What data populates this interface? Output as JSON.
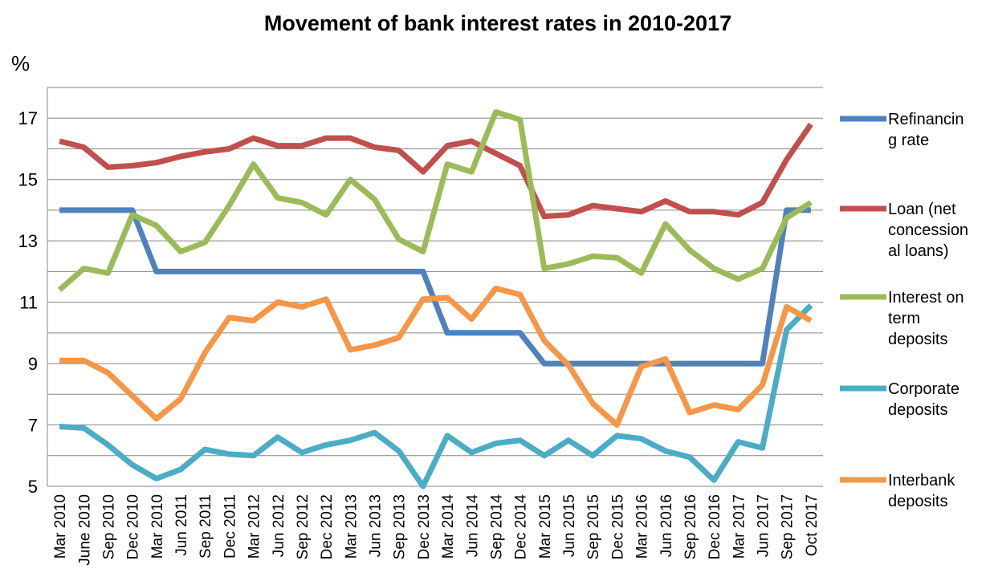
{
  "chart_data": {
    "type": "line",
    "title": "Movement of bank interest rates in 2010-2017",
    "ylabel": "%",
    "xlabel": "",
    "ylim": [
      5,
      18
    ],
    "yticks": [
      5,
      7,
      9,
      11,
      13,
      15,
      17
    ],
    "grid": true,
    "legend_position": "right",
    "categories": [
      "Mar 2010",
      "June 2010",
      "Sep 2010",
      "Dec 2010",
      "Mar 2010",
      "Jun 2011",
      "Sep 2011",
      "Dec 2011",
      "Mar 2012",
      "Jun 2012",
      "Sep 2012",
      "Dec 2012",
      "Mar 2013",
      "Jun 2013",
      "Sep 2013",
      "Dec 2013",
      "Mar 2014",
      "Jun 2014",
      "Sep 2014",
      "Dec 2014",
      "Mar 2015",
      "Jun 2015",
      "Sep 2015",
      "Dec 2015",
      "Mar 2016",
      "Jun 2016",
      "Sep 2016",
      "Dec 2016",
      "Mar 2017",
      "Jun 2017",
      "Sep 2017",
      "Oct 2017"
    ],
    "series": [
      {
        "name": "Refinancing rate",
        "legend_lines": [
          "Refinancin",
          "g rate"
        ],
        "color": "#4F81BD",
        "values": [
          14,
          14,
          14,
          14,
          12,
          12,
          12,
          12,
          12,
          12,
          12,
          12,
          12,
          12,
          12,
          12,
          10,
          10,
          10,
          10,
          9,
          9,
          9,
          9,
          9,
          9,
          9,
          9,
          9,
          9,
          14,
          14
        ]
      },
      {
        "name": "Loan (net concessional loans)",
        "legend_lines": [
          "Loan (net",
          "concession",
          "al loans)"
        ],
        "color": "#C0504D",
        "values": [
          16.25,
          16.05,
          15.4,
          15.45,
          15.55,
          15.75,
          15.9,
          16.0,
          16.35,
          16.1,
          16.1,
          16.35,
          16.35,
          16.05,
          15.95,
          15.25,
          16.1,
          16.25,
          15.85,
          15.45,
          13.8,
          13.85,
          14.15,
          14.05,
          13.95,
          14.3,
          13.95,
          13.95,
          13.85,
          14.25,
          15.65,
          16.8
        ]
      },
      {
        "name": "Interest on term deposits",
        "legend_lines": [
          "Interest on",
          "term",
          "deposits"
        ],
        "color": "#9BBB59",
        "values": [
          11.4,
          12.1,
          11.95,
          13.85,
          13.5,
          12.65,
          12.95,
          14.15,
          15.5,
          14.4,
          14.25,
          13.85,
          15.0,
          14.35,
          13.05,
          12.65,
          15.5,
          15.25,
          17.2,
          16.95,
          12.1,
          12.25,
          12.5,
          12.45,
          11.95,
          13.55,
          12.7,
          12.1,
          11.75,
          12.1,
          13.75,
          14.25
        ]
      },
      {
        "name": "Corporate deposits",
        "legend_lines": [
          "Corporate",
          "deposits"
        ],
        "color": "#4BACC6",
        "values": [
          6.95,
          6.9,
          6.35,
          5.7,
          5.25,
          5.55,
          6.2,
          6.05,
          6.0,
          6.6,
          6.1,
          6.35,
          6.5,
          6.75,
          6.15,
          5.0,
          6.65,
          6.1,
          6.4,
          6.5,
          6.0,
          6.5,
          6.0,
          6.65,
          6.55,
          6.15,
          5.95,
          5.2,
          6.45,
          6.25,
          10.1,
          10.9
        ]
      },
      {
        "name": "Interbank deposits",
        "legend_lines": [
          "Interbank",
          "deposits"
        ],
        "color": "#F79646",
        "values": [
          9.1,
          9.1,
          8.7,
          7.95,
          7.2,
          7.85,
          9.35,
          10.5,
          10.4,
          11.0,
          10.85,
          11.1,
          9.45,
          9.6,
          9.85,
          11.1,
          11.15,
          10.45,
          11.45,
          11.25,
          9.75,
          8.95,
          7.7,
          7.0,
          8.9,
          9.15,
          7.4,
          7.65,
          7.5,
          8.3,
          10.85,
          10.4
        ]
      }
    ]
  }
}
